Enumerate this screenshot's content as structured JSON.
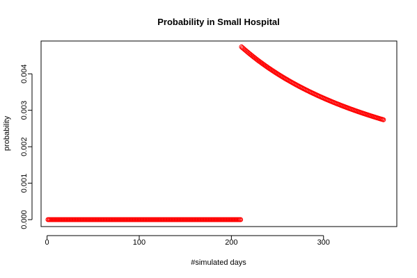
{
  "chart_data": {
    "type": "scatter",
    "title": "Probability in Small Hospital",
    "xlabel": "#simulated days",
    "ylabel": "probability",
    "xlim": [
      -6.5,
      379.5
    ],
    "ylim": [
      -0.00019,
      0.0049
    ],
    "x_ticks": [
      0,
      100,
      200,
      300
    ],
    "y_ticks": [
      0.0,
      0.001,
      0.002,
      0.003,
      0.004
    ],
    "x_tick_labels": [
      "0",
      "100",
      "200",
      "300"
    ],
    "y_tick_labels": [
      "0.000",
      "0.001",
      "0.002",
      "0.003",
      "0.004"
    ],
    "marker": "open-circle",
    "color": "#ff0000",
    "series": [
      {
        "segments": [
          {
            "x_start": 1,
            "x_end": 210,
            "rule": "constant",
            "value": 0.0
          },
          {
            "x_start": 211,
            "x_end": 365,
            "rule": "one-over-x",
            "value": 1,
            "note": "y = 1/x"
          }
        ]
      }
    ],
    "grid": false,
    "legend": "none"
  }
}
